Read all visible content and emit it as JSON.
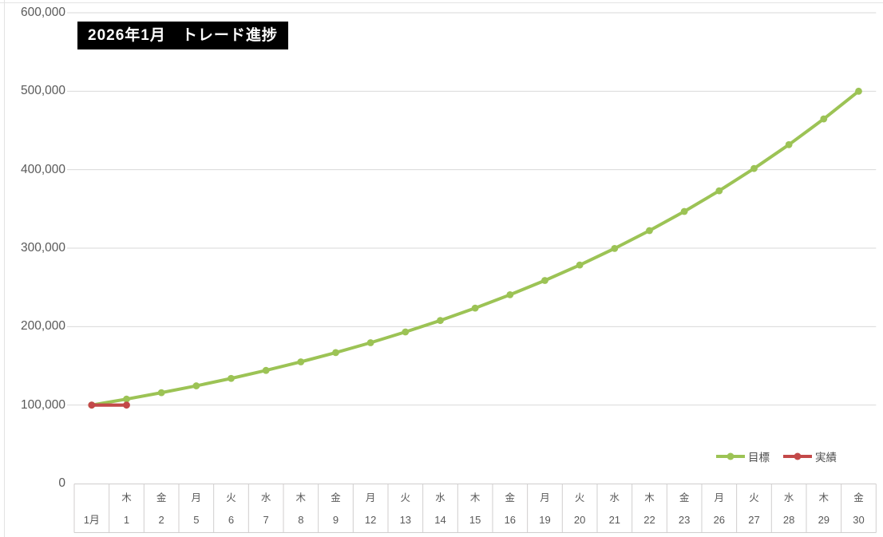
{
  "chart_data": {
    "type": "line",
    "title": "2026年1月　トレード進捗",
    "ylim": [
      0,
      600000
    ],
    "y_tick_step": 100000,
    "y_tick_labels": [
      "0",
      "100,000",
      "200,000",
      "300,000",
      "400,000",
      "500,000",
      "600,000"
    ],
    "grid": "horizontal",
    "legend_position": "bottom-right-inside",
    "x_axis": {
      "month_label": "1月",
      "weekdays": [
        "",
        "木",
        "金",
        "月",
        "火",
        "水",
        "木",
        "金",
        "月",
        "火",
        "水",
        "木",
        "金",
        "月",
        "火",
        "水",
        "木",
        "金",
        "月",
        "火",
        "水",
        "木",
        "金"
      ],
      "days": [
        "1月",
        "1",
        "2",
        "5",
        "6",
        "7",
        "8",
        "9",
        "12",
        "13",
        "14",
        "15",
        "16",
        "19",
        "20",
        "21",
        "22",
        "23",
        "26",
        "27",
        "28",
        "29",
        "30"
      ]
    },
    "series": [
      {
        "name": "目標",
        "color": "#9CC355",
        "marker": "circle",
        "values": [
          100000,
          107600,
          115800,
          124500,
          134000,
          144200,
          155100,
          166900,
          179500,
          193200,
          207800,
          223600,
          240600,
          258800,
          278500,
          299600,
          322400,
          346800,
          373100,
          401500,
          431900,
          464700,
          500000
        ]
      },
      {
        "name": "実績",
        "color": "#C34949",
        "marker": "circle",
        "values": [
          100000,
          100000
        ]
      }
    ],
    "colors": {
      "gridline": "#D9D9D9",
      "axis_line": "#D0CECE",
      "tick_label": "#595959",
      "title_bg": "#000000",
      "title_text": "#FFFFFF",
      "sheet_line": "#E3E3E3"
    }
  }
}
